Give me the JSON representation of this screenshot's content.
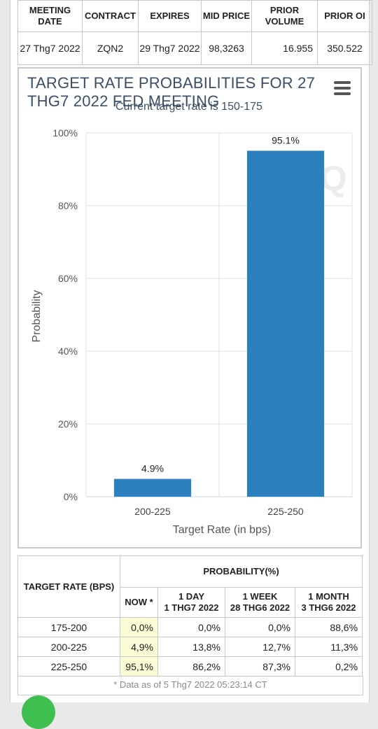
{
  "top_table": {
    "headers": [
      "MEETING DATE",
      "CONTRACT",
      "EXPIRES",
      "MID PRICE",
      "PRIOR VOLUME",
      "PRIOR OI"
    ],
    "row": [
      "27 Thg7 2022",
      "ZQN2",
      "29 Thg7 2022",
      "98,3263",
      "16.955",
      "350.522"
    ]
  },
  "chart_data": {
    "type": "bar",
    "title": "TARGET RATE PROBABILITIES FOR 27 THG7 2022 FED MEETING",
    "subtitle": "Current target rate is 150-175",
    "xlabel": "Target Rate (in bps)",
    "ylabel": "Probability",
    "categories": [
      "200-225",
      "225-250"
    ],
    "values": [
      4.9,
      95.1
    ],
    "data_labels": [
      "4.9%",
      "95.1%"
    ],
    "ylim": [
      0,
      100
    ],
    "yticks": [
      0,
      20,
      40,
      60,
      80,
      100
    ],
    "ytick_labels": [
      "0%",
      "20%",
      "40%",
      "60%",
      "80%",
      "100%"
    ],
    "bar_color": "#2b80bd",
    "grid": true,
    "menu_icon": "hamburger-menu-icon"
  },
  "prob_table": {
    "header_rate": "TARGET RATE (BPS)",
    "header_prob": "PROBABILITY(%)",
    "header_now": "NOW *",
    "header_day": [
      "1 DAY",
      "1 THG7 2022"
    ],
    "header_week": [
      "1 WEEK",
      "28 THG6 2022"
    ],
    "header_month": [
      "1 MONTH",
      "3 THG6 2022"
    ],
    "rows": [
      {
        "rate": "175-200",
        "now": "0,0%",
        "day": "0,0%",
        "week": "0,0%",
        "month": "88,6%"
      },
      {
        "rate": "200-225",
        "now": "4,9%",
        "day": "13,8%",
        "week": "12,7%",
        "month": "11,3%"
      },
      {
        "rate": "225-250",
        "now": "95,1%",
        "day": "86,2%",
        "week": "87,3%",
        "month": "0,2%"
      }
    ],
    "footnote": "* Data as of 5 Thg7 2022 05:23:14 CT"
  }
}
